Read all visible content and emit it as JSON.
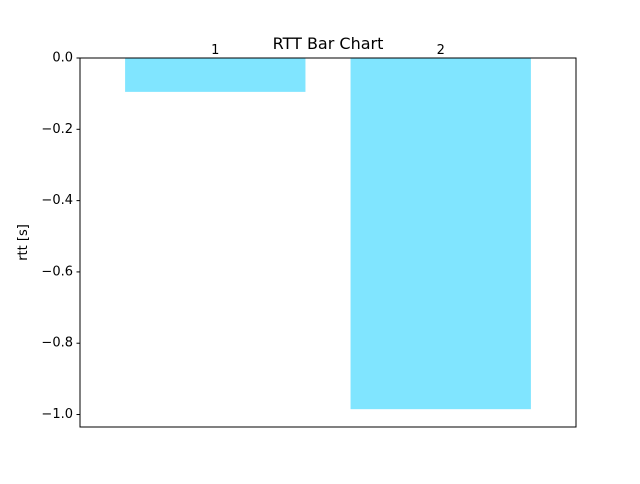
{
  "chart_data": {
    "type": "bar",
    "title": "RTT Bar Chart",
    "xlabel": "",
    "ylabel": "rtt [s]",
    "categories": [
      "1",
      "2"
    ],
    "values": [
      -0.095,
      -0.985
    ],
    "data_labels": [
      "1",
      "2"
    ],
    "ylim": [
      -1.035,
      0.0
    ],
    "yticks": [
      0.0,
      -0.2,
      -0.4,
      -0.6,
      -0.8,
      -1.0
    ],
    "ytick_labels": [
      "0.0",
      "−0.2",
      "−0.4",
      "−0.6",
      "−0.8",
      "−1.0"
    ],
    "xticks_visible": false,
    "grid": false,
    "legend": "none",
    "bar_color": "#80e5ff"
  }
}
